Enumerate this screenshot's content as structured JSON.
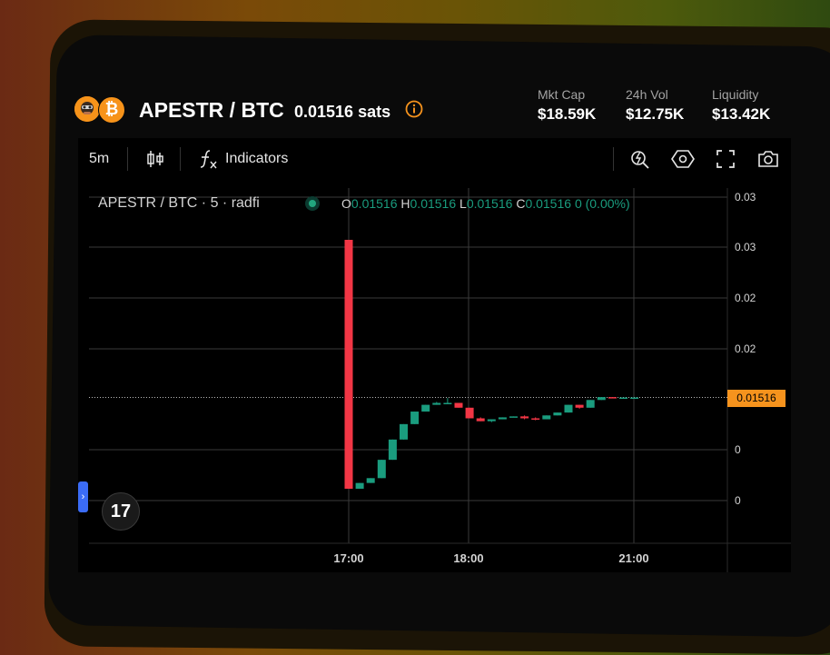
{
  "header": {
    "pair": "APESTR / BTC",
    "price": "0.01516 sats",
    "logo_btc_glyph": "₿",
    "stats": [
      {
        "label": "Mkt Cap",
        "value": "$18.59K"
      },
      {
        "label": "24h Vol",
        "value": "$12.75K"
      },
      {
        "label": "Liquidity",
        "value": "$13.42K"
      }
    ]
  },
  "toolbar": {
    "interval": "5m",
    "indicators_label": "Indicators",
    "icons": [
      "candles-icon",
      "function-icon",
      "zoom-icon",
      "settings-hex-icon",
      "fullscreen-icon",
      "camera-icon"
    ]
  },
  "legend": {
    "title": "APESTR / BTC · 5 · radfi",
    "o_key": "O",
    "o_val": "0.01516",
    "h_key": "H",
    "h_val": "0.01516",
    "l_key": "L",
    "l_val": "0.01516",
    "c_key": "C",
    "c_val": "0.01516",
    "change": "0 (0.00%)"
  },
  "price_tag": "0.01516",
  "tv_logo": "17",
  "side_handle": "›",
  "colors": {
    "up": "#1a9c7e",
    "down": "#f23645",
    "accent": "#f6931d"
  },
  "chart_data": {
    "type": "candlestick",
    "y_tick_labels": [
      "0.03",
      "0.03",
      "0.02",
      "0.02",
      "0",
      "0"
    ],
    "x_tick_labels": [
      "17:00",
      "18:00",
      "21:00"
    ],
    "last_price": 0.01516,
    "candles": [
      {
        "o": 0.0315,
        "h": 0.0315,
        "l": 0.0057,
        "c": 0.0057
      },
      {
        "o": 0.0057,
        "h": 0.0063,
        "l": 0.0057,
        "c": 0.0063
      },
      {
        "o": 0.0063,
        "h": 0.0068,
        "l": 0.0063,
        "c": 0.0068
      },
      {
        "o": 0.0068,
        "h": 0.0087,
        "l": 0.0068,
        "c": 0.0087
      },
      {
        "o": 0.0087,
        "h": 0.0108,
        "l": 0.0087,
        "c": 0.0108
      },
      {
        "o": 0.0108,
        "h": 0.0124,
        "l": 0.0108,
        "c": 0.0124
      },
      {
        "o": 0.0124,
        "h": 0.0137,
        "l": 0.0124,
        "c": 0.0137
      },
      {
        "o": 0.0137,
        "h": 0.0144,
        "l": 0.0137,
        "c": 0.0144
      },
      {
        "o": 0.0144,
        "h": 0.0147,
        "l": 0.0144,
        "c": 0.0146
      },
      {
        "o": 0.0146,
        "h": 0.0151,
        "l": 0.0145,
        "c": 0.0146
      },
      {
        "o": 0.0146,
        "h": 0.0146,
        "l": 0.0141,
        "c": 0.0141
      },
      {
        "o": 0.0141,
        "h": 0.0141,
        "l": 0.013,
        "c": 0.013
      },
      {
        "o": 0.013,
        "h": 0.0131,
        "l": 0.0127,
        "c": 0.0127
      },
      {
        "o": 0.0127,
        "h": 0.0129,
        "l": 0.0126,
        "c": 0.0129
      },
      {
        "o": 0.0129,
        "h": 0.0131,
        "l": 0.0129,
        "c": 0.0131
      },
      {
        "o": 0.0131,
        "h": 0.0132,
        "l": 0.0131,
        "c": 0.0132
      },
      {
        "o": 0.0132,
        "h": 0.0133,
        "l": 0.0129,
        "c": 0.013
      },
      {
        "o": 0.013,
        "h": 0.0131,
        "l": 0.0128,
        "c": 0.0129
      },
      {
        "o": 0.0129,
        "h": 0.0133,
        "l": 0.0129,
        "c": 0.0133
      },
      {
        "o": 0.0133,
        "h": 0.0136,
        "l": 0.0133,
        "c": 0.0136
      },
      {
        "o": 0.0136,
        "h": 0.0144,
        "l": 0.0136,
        "c": 0.0144
      },
      {
        "o": 0.0144,
        "h": 0.0144,
        "l": 0.014,
        "c": 0.0141
      },
      {
        "o": 0.0141,
        "h": 0.0149,
        "l": 0.0141,
        "c": 0.0149
      },
      {
        "o": 0.0149,
        "h": 0.0152,
        "l": 0.0149,
        "c": 0.0152
      },
      {
        "o": 0.0152,
        "h": 0.0152,
        "l": 0.0151,
        "c": 0.01516
      },
      {
        "o": 0.01516,
        "h": 0.01516,
        "l": 0.01516,
        "c": 0.01516
      },
      {
        "o": 0.01516,
        "h": 0.01516,
        "l": 0.01516,
        "c": 0.01516
      }
    ]
  }
}
